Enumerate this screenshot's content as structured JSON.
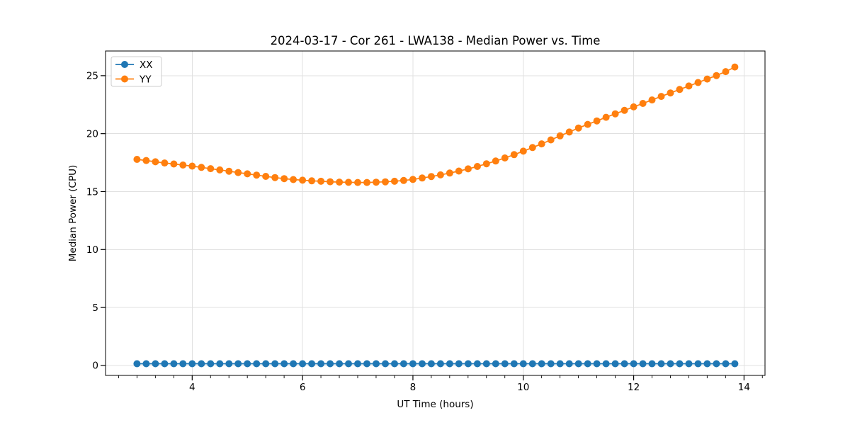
{
  "chart_data": {
    "type": "line",
    "title": "2024-03-17 - Cor 261 - LWA138 - Median Power vs. Time",
    "xlabel": "UT Time (hours)",
    "ylabel": "Median Power (CPU)",
    "xlim": [
      2.43,
      14.38
    ],
    "ylim": [
      -0.86,
      27.13
    ],
    "xticks": [
      4,
      6,
      8,
      10,
      12,
      14
    ],
    "yticks": [
      0,
      5,
      10,
      15,
      20,
      25
    ],
    "x_minor_step": 0.3333,
    "grid": true,
    "grid_color": "#e0e0e0",
    "legend_position": "upper-left",
    "x": [
      3.0,
      3.167,
      3.333,
      3.5,
      3.667,
      3.833,
      4.0,
      4.167,
      4.333,
      4.5,
      4.667,
      4.833,
      5.0,
      5.167,
      5.333,
      5.5,
      5.667,
      5.833,
      6.0,
      6.167,
      6.333,
      6.5,
      6.667,
      6.833,
      7.0,
      7.167,
      7.333,
      7.5,
      7.667,
      7.833,
      8.0,
      8.167,
      8.333,
      8.5,
      8.667,
      8.833,
      9.0,
      9.167,
      9.333,
      9.5,
      9.667,
      9.833,
      10.0,
      10.167,
      10.333,
      10.5,
      10.667,
      10.833,
      11.0,
      11.167,
      11.333,
      11.5,
      11.667,
      11.833,
      12.0,
      12.167,
      12.333,
      12.5,
      12.667,
      12.833,
      13.0,
      13.167,
      13.333,
      13.5,
      13.667,
      13.833
    ],
    "series": [
      {
        "name": "XX",
        "color": "#1f77b4",
        "values": [
          0.15,
          0.15,
          0.15,
          0.15,
          0.15,
          0.15,
          0.15,
          0.15,
          0.15,
          0.15,
          0.15,
          0.15,
          0.15,
          0.15,
          0.15,
          0.15,
          0.15,
          0.15,
          0.15,
          0.15,
          0.15,
          0.15,
          0.15,
          0.15,
          0.15,
          0.15,
          0.15,
          0.15,
          0.15,
          0.15,
          0.15,
          0.15,
          0.15,
          0.15,
          0.15,
          0.15,
          0.15,
          0.15,
          0.15,
          0.15,
          0.15,
          0.15,
          0.15,
          0.15,
          0.15,
          0.15,
          0.15,
          0.15,
          0.15,
          0.15,
          0.15,
          0.15,
          0.15,
          0.15,
          0.15,
          0.15,
          0.15,
          0.15,
          0.15,
          0.15,
          0.15,
          0.15,
          0.15,
          0.15,
          0.15,
          0.15
        ]
      },
      {
        "name": "YY",
        "color": "#ff7f0e",
        "values": [
          17.78,
          17.68,
          17.57,
          17.47,
          17.38,
          17.29,
          17.2,
          17.09,
          16.98,
          16.87,
          16.76,
          16.64,
          16.53,
          16.42,
          16.31,
          16.21,
          16.12,
          16.04,
          15.98,
          15.93,
          15.89,
          15.85,
          15.82,
          15.8,
          15.79,
          15.79,
          15.81,
          15.84,
          15.89,
          15.96,
          16.05,
          16.17,
          16.3,
          16.44,
          16.6,
          16.77,
          16.96,
          17.17,
          17.4,
          17.64,
          17.9,
          18.19,
          18.49,
          18.8,
          19.12,
          19.46,
          19.81,
          20.14,
          20.49,
          20.8,
          21.1,
          21.41,
          21.71,
          22.01,
          22.31,
          22.61,
          22.91,
          23.21,
          23.51,
          23.81,
          24.11,
          24.41,
          24.71,
          25.01,
          25.35,
          25.75
        ]
      }
    ]
  }
}
